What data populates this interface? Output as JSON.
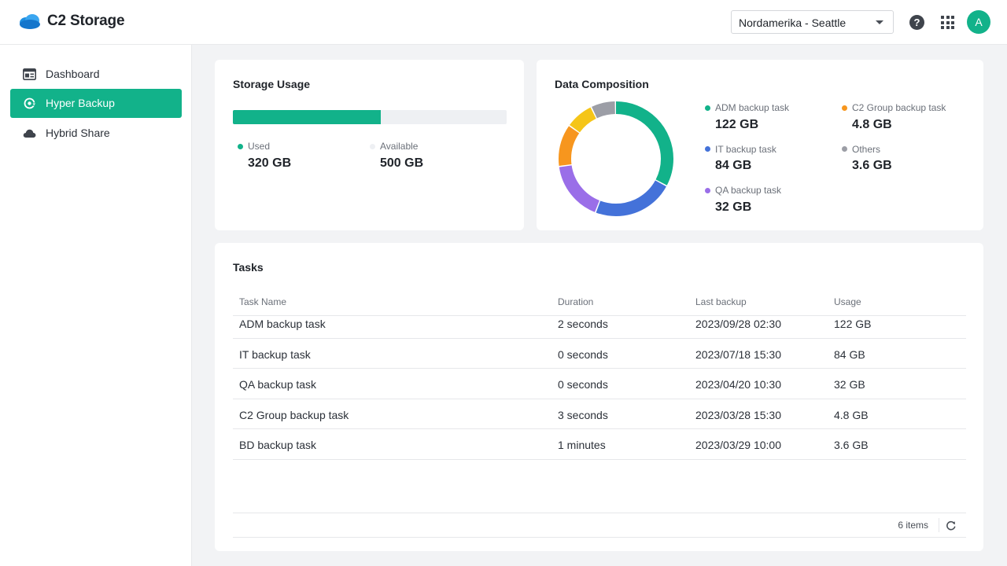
{
  "app": {
    "title": "C2 Storage"
  },
  "header": {
    "region": "Nordamerika - Seattle",
    "help_label": "?",
    "avatar_letter": "A"
  },
  "sidebar": {
    "items": [
      {
        "label": "Dashboard",
        "icon": "dashboard-icon",
        "active": false
      },
      {
        "label": "Hyper Backup",
        "icon": "hyper-backup-icon",
        "active": true
      },
      {
        "label": "Hybrid Share",
        "icon": "cloud-icon",
        "active": false
      }
    ]
  },
  "storage_usage": {
    "title": "Storage Usage",
    "used_label": "Used",
    "used_value": "320 GB",
    "available_label": "Available",
    "available_value": "500 GB",
    "used_fraction": 0.54,
    "colors": {
      "used": "#12b28a",
      "available": "#eef0f3"
    }
  },
  "data_composition": {
    "title": "Data Composition",
    "legend": [
      {
        "label": "ADM backup task",
        "value": "122 GB",
        "color": "#12b28a"
      },
      {
        "label": "C2 Group backup task",
        "value": "4.8 GB",
        "color": "#f7961e"
      },
      {
        "label": "IT backup task",
        "value": "84 GB",
        "color": "#4472d9"
      },
      {
        "label": "Others",
        "value": "3.6 GB",
        "color": "#9c9ea6"
      },
      {
        "label": "QA backup task",
        "value": "32 GB",
        "color": "#9a6ee8"
      }
    ]
  },
  "chart_data": {
    "type": "pie",
    "style": "donut",
    "title": "Data Composition",
    "segments": [
      {
        "name": "ADM backup task",
        "value": 0.33,
        "color": "#12b28a"
      },
      {
        "name": "IT backup task",
        "value": 0.23,
        "color": "#4472d9"
      },
      {
        "name": "QA backup task",
        "value": 0.17,
        "color": "#9a6ee8"
      },
      {
        "name": "C2 Group backup task",
        "value": 0.12,
        "color": "#f7961e"
      },
      {
        "name": "",
        "value": 0.08,
        "color": "#f5c518"
      },
      {
        "name": "Others",
        "value": 0.07,
        "color": "#9c9ea6"
      }
    ],
    "legend_position": "right"
  },
  "tasks": {
    "title": "Tasks",
    "columns": [
      "Task Name",
      "Duration",
      "Last backup",
      "Usage"
    ],
    "rows": [
      [
        "ADM backup task",
        "2 seconds",
        "2023/09/28 02:30",
        "122 GB"
      ],
      [
        "IT backup task",
        "0 seconds",
        "2023/07/18 15:30",
        "84 GB"
      ],
      [
        "QA backup task",
        "0 seconds",
        "2023/04/20 10:30",
        "32 GB"
      ],
      [
        "C2 Group backup task",
        "3 seconds",
        "2023/03/28 15:30",
        "4.8 GB"
      ],
      [
        "BD backup task",
        "1 minutes",
        "2023/03/29 10:00",
        "3.6 GB"
      ]
    ],
    "items_count": "6 items"
  }
}
